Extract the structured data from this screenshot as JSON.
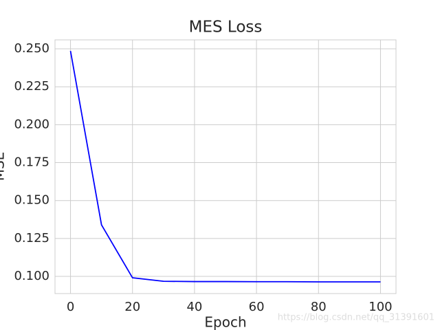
{
  "chart_data": {
    "type": "line",
    "title": "MES Loss",
    "x_label": "Epoch",
    "y_label": "MSE",
    "x": [
      0,
      10,
      20,
      30,
      40,
      50,
      60,
      70,
      80,
      90,
      100
    ],
    "series": [
      {
        "name": "MSE",
        "color": "#0000ff",
        "values": [
          0.2486,
          0.134,
          0.0991,
          0.0968,
          0.0966,
          0.0966,
          0.0965,
          0.0965,
          0.0964,
          0.0964,
          0.0964
        ]
      }
    ],
    "xlim": [
      -5,
      105
    ],
    "xticks": [
      0,
      20,
      40,
      60,
      80,
      100
    ],
    "ylim": [
      0.0887,
      0.2559
    ],
    "yticks": [
      {
        "value": 0.1,
        "label": "0.100"
      },
      {
        "value": 0.125,
        "label": "0.125"
      },
      {
        "value": 0.15,
        "label": "0.150"
      },
      {
        "value": 0.175,
        "label": "0.175"
      },
      {
        "value": 0.2,
        "label": "0.200"
      },
      {
        "value": 0.225,
        "label": "0.225"
      },
      {
        "value": 0.25,
        "label": "0.250"
      }
    ],
    "grid": true,
    "annotation": "https://blog.csdn.net/qq_31391601"
  }
}
